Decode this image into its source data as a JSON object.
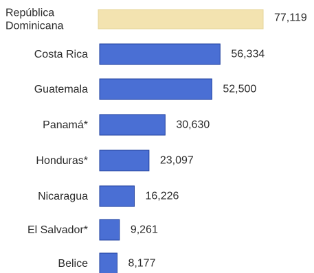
{
  "chart_data": {
    "type": "bar",
    "orientation": "horizontal",
    "title": "",
    "xlabel": "",
    "ylabel": "",
    "grid": false,
    "categories": [
      [
        "República",
        "Dominicana"
      ],
      [
        "Costa Rica"
      ],
      [
        "Guatemala"
      ],
      [
        "Panamá*"
      ],
      [
        "Honduras*"
      ],
      [
        "Nicaragua"
      ],
      [
        "El Salvador*"
      ],
      [
        "Belice"
      ]
    ],
    "values": [
      77119,
      56334,
      52500,
      30630,
      23097,
      16226,
      9261,
      8177
    ],
    "value_labels": [
      "77,119",
      "56,334",
      "52,500",
      "30,630",
      "23,097",
      "16,226",
      "9,261",
      "8,177"
    ],
    "highlight_index": 0,
    "colors": {
      "bar": "#4a6fd4",
      "bar_stroke": "#1f3f9e",
      "highlight": "#f3e3b0",
      "highlight_stroke": "#e6d49a"
    }
  }
}
